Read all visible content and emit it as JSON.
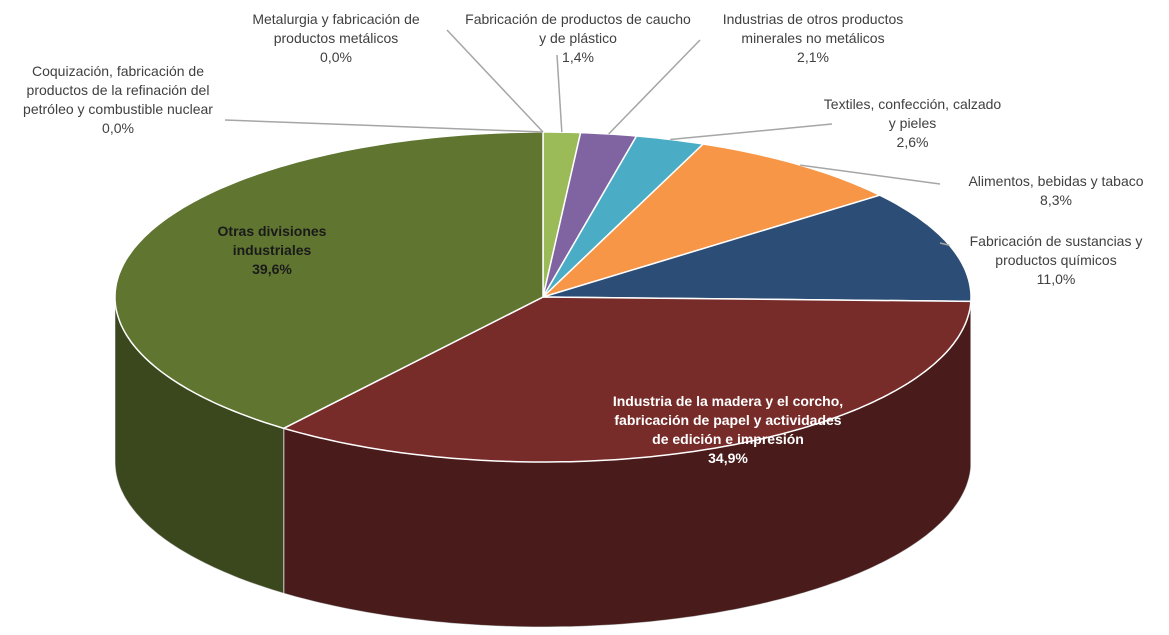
{
  "chart_data": {
    "type": "pie",
    "categories": [
      "Coquización, fabricación de productos de la refinación del petróleo y combustible nuclear",
      "Metalurgia y fabricación de productos metálicos",
      "Fabricación de productos de caucho y de plástico",
      "Industrias de otros productos minerales no metálicos",
      "Textiles, confección, calzado y pieles",
      "Alimentos, bebidas y tabaco",
      "Fabricación de sustancias y productos químicos",
      "Industria de la madera y el corcho, fabricación de papel y actividades de edición e impresión",
      "Otras divisiones industriales"
    ],
    "values": [
      0.0,
      0.0,
      1.4,
      2.1,
      2.6,
      8.3,
      11.0,
      34.9,
      39.6
    ],
    "value_labels": [
      "0,0%",
      "0,0%",
      "1,4%",
      "2,1%",
      "2,6%",
      "8,3%",
      "11,0%",
      "34,9%",
      "39,6%"
    ],
    "colors": [
      "#7f7f7f",
      "#a5a5a5",
      "#9bbb59",
      "#8064a2",
      "#4bacc6",
      "#f79646",
      "#2c4d75",
      "#772c2a",
      "#5f7530"
    ]
  }
}
